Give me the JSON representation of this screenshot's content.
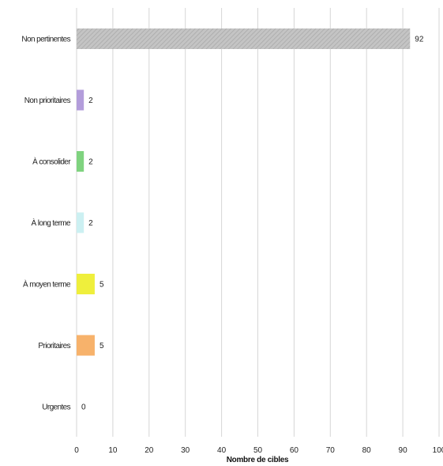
{
  "chart_data": {
    "type": "bar",
    "orientation": "horizontal",
    "categories": [
      "Non pertinentes",
      "Non prioritaires",
      "À consolider",
      "À long terme",
      "À moyen terme",
      "Prioritaires",
      "Urgentes"
    ],
    "values": [
      92,
      2,
      2,
      2,
      5,
      5,
      0
    ],
    "data_labels": [
      "92",
      "2",
      "2",
      "2",
      "5",
      "5",
      "0"
    ],
    "colors": [
      "#bdbdbd",
      "#b39ddb",
      "#7fd37f",
      "#ccf0f2",
      "#efef3c",
      "#f7b26b",
      "#ffffff"
    ],
    "hatched": [
      true,
      false,
      false,
      false,
      false,
      false,
      false
    ],
    "xlabel": "Nombre de cibles",
    "ylabel": "",
    "title": "",
    "xlim": [
      0,
      100
    ],
    "xticks": [
      "0",
      "10",
      "20",
      "30",
      "40",
      "50",
      "60",
      "70",
      "80",
      "90",
      "100"
    ],
    "grid": true
  }
}
